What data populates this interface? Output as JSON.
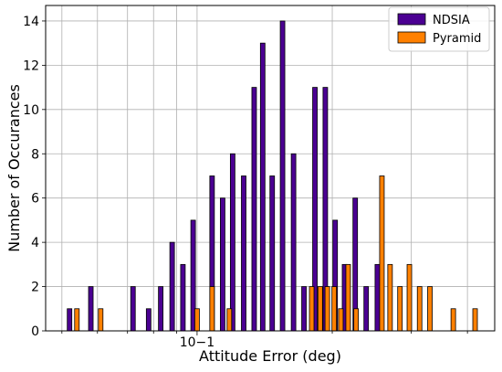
{
  "chart_data": {
    "type": "bar",
    "xscale": "log",
    "xlabel": "Attitude Error (deg)",
    "ylabel": "Number of Occurances",
    "x_tick_major_label": "10−1",
    "x_tick_major_value": 0.1,
    "ylim": [
      0,
      14.7
    ],
    "yticks": [
      0,
      2,
      4,
      6,
      8,
      10,
      12,
      14
    ],
    "grid": true,
    "legend_position": "top-right",
    "series": [
      {
        "name": "NDSIA",
        "color": "#4b0092",
        "points": [
          {
            "x": 0.052,
            "y": 1
          },
          {
            "x": 0.058,
            "y": 2
          },
          {
            "x": 0.072,
            "y": 2
          },
          {
            "x": 0.078,
            "y": 1
          },
          {
            "x": 0.083,
            "y": 2
          },
          {
            "x": 0.088,
            "y": 4
          },
          {
            "x": 0.093,
            "y": 3
          },
          {
            "x": 0.098,
            "y": 5
          },
          {
            "x": 0.108,
            "y": 7
          },
          {
            "x": 0.114,
            "y": 6
          },
          {
            "x": 0.12,
            "y": 8
          },
          {
            "x": 0.127,
            "y": 7
          },
          {
            "x": 0.134,
            "y": 11
          },
          {
            "x": 0.14,
            "y": 13
          },
          {
            "x": 0.147,
            "y": 7
          },
          {
            "x": 0.155,
            "y": 14
          },
          {
            "x": 0.164,
            "y": 8
          },
          {
            "x": 0.173,
            "y": 2
          },
          {
            "x": 0.183,
            "y": 11
          },
          {
            "x": 0.193,
            "y": 11
          },
          {
            "x": 0.203,
            "y": 5
          },
          {
            "x": 0.213,
            "y": 3
          },
          {
            "x": 0.225,
            "y": 6
          },
          {
            "x": 0.238,
            "y": 2
          },
          {
            "x": 0.252,
            "y": 3
          }
        ]
      },
      {
        "name": "Pyramid",
        "color": "#ff8000",
        "points": [
          {
            "x": 0.054,
            "y": 1
          },
          {
            "x": 0.061,
            "y": 1
          },
          {
            "x": 0.1,
            "y": 1
          },
          {
            "x": 0.108,
            "y": 2
          },
          {
            "x": 0.118,
            "y": 1
          },
          {
            "x": 0.18,
            "y": 2
          },
          {
            "x": 0.188,
            "y": 2
          },
          {
            "x": 0.195,
            "y": 2
          },
          {
            "x": 0.202,
            "y": 2
          },
          {
            "x": 0.209,
            "y": 1
          },
          {
            "x": 0.217,
            "y": 3
          },
          {
            "x": 0.226,
            "y": 1
          },
          {
            "x": 0.258,
            "y": 7
          },
          {
            "x": 0.269,
            "y": 3
          },
          {
            "x": 0.283,
            "y": 2
          },
          {
            "x": 0.297,
            "y": 3
          },
          {
            "x": 0.313,
            "y": 2
          },
          {
            "x": 0.33,
            "y": 2
          },
          {
            "x": 0.372,
            "y": 1
          },
          {
            "x": 0.416,
            "y": 1
          }
        ]
      }
    ]
  }
}
